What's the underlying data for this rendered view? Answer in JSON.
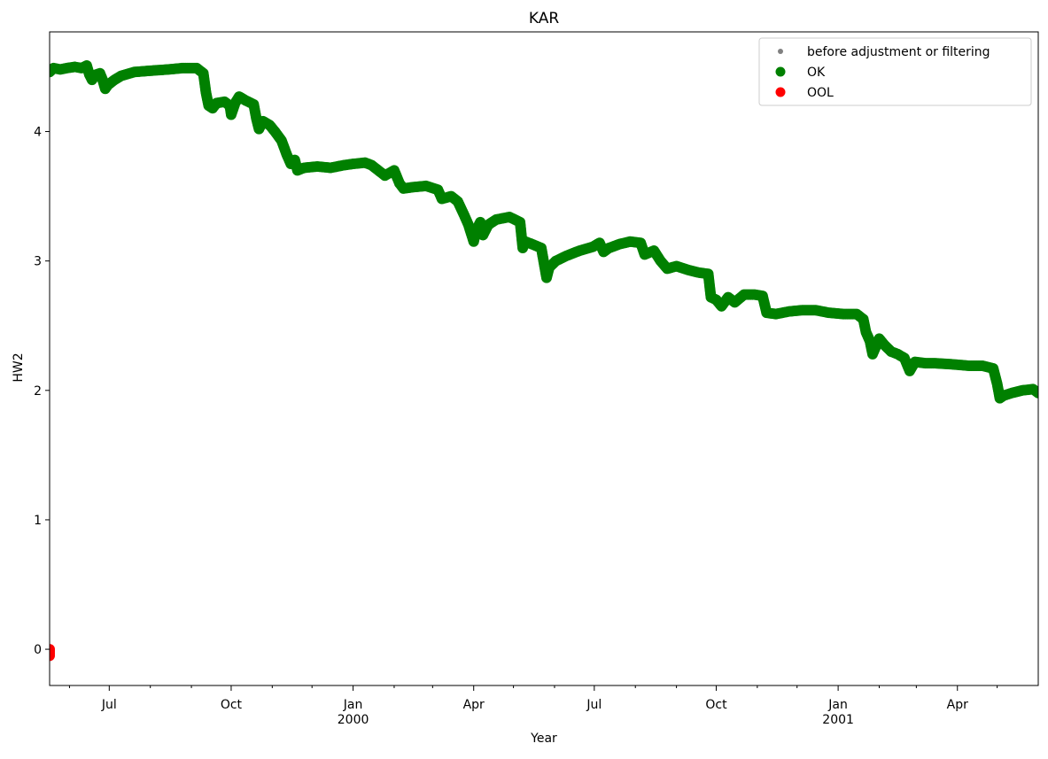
{
  "chart_data": {
    "type": "scatter",
    "title": "KAR",
    "xlabel": "Year",
    "ylabel": "HW2",
    "x_axis": {
      "type": "date",
      "range": [
        "1999-05-17",
        "2001-06-01"
      ],
      "major_ticks": [
        {
          "date": "1999-07-01",
          "label": "Jul",
          "sublabel": ""
        },
        {
          "date": "1999-10-01",
          "label": "Oct",
          "sublabel": ""
        },
        {
          "date": "2000-01-01",
          "label": "Jan",
          "sublabel": "2000"
        },
        {
          "date": "2000-04-01",
          "label": "Apr",
          "sublabel": ""
        },
        {
          "date": "2000-07-01",
          "label": "Jul",
          "sublabel": ""
        },
        {
          "date": "2000-10-01",
          "label": "Oct",
          "sublabel": ""
        },
        {
          "date": "2001-01-01",
          "label": "Jan",
          "sublabel": "2001"
        },
        {
          "date": "2001-04-01",
          "label": "Apr",
          "sublabel": ""
        }
      ],
      "minor_ticks": [
        "1999-06-01",
        "1999-08-01",
        "1999-09-01",
        "1999-11-01",
        "1999-12-01",
        "2000-02-01",
        "2000-03-01",
        "2000-05-01",
        "2000-06-01",
        "2000-08-01",
        "2000-09-01",
        "2000-11-01",
        "2000-12-01",
        "2001-02-01",
        "2001-03-01",
        "2001-05-01"
      ]
    },
    "y_axis": {
      "range": [
        -0.28,
        4.77
      ],
      "ticks": [
        0,
        1,
        2,
        3,
        4
      ],
      "tick_labels": [
        "0",
        "1",
        "2",
        "3",
        "4"
      ]
    },
    "grid": false,
    "legend": {
      "placement": "top-right",
      "entries": [
        {
          "label": "before adjustment or filtering",
          "color": "#808080",
          "marker": "small-dot"
        },
        {
          "label": "OK",
          "color": "#008000",
          "marker": "circle"
        },
        {
          "label": "OOL",
          "color": "#ff0000",
          "marker": "circle"
        }
      ]
    },
    "series": [
      {
        "name": "OK",
        "color": "#008000",
        "points": [
          [
            "1999-05-17",
            4.46
          ],
          [
            "1999-05-20",
            4.49
          ],
          [
            "1999-05-25",
            4.48
          ],
          [
            "1999-05-30",
            4.49
          ],
          [
            "1999-06-05",
            4.5
          ],
          [
            "1999-06-10",
            4.49
          ],
          [
            "1999-06-14",
            4.51
          ],
          [
            "1999-06-16",
            4.44
          ],
          [
            "1999-06-18",
            4.4
          ],
          [
            "1999-06-21",
            4.44
          ],
          [
            "1999-06-24",
            4.45
          ],
          [
            "1999-06-26",
            4.4
          ],
          [
            "1999-06-28",
            4.33
          ],
          [
            "1999-06-30",
            4.36
          ],
          [
            "1999-07-05",
            4.4
          ],
          [
            "1999-07-10",
            4.43
          ],
          [
            "1999-07-20",
            4.46
          ],
          [
            "1999-08-01",
            4.47
          ],
          [
            "1999-08-15",
            4.48
          ],
          [
            "1999-08-25",
            4.49
          ],
          [
            "1999-09-05",
            4.49
          ],
          [
            "1999-09-10",
            4.45
          ],
          [
            "1999-09-12",
            4.3
          ],
          [
            "1999-09-14",
            4.2
          ],
          [
            "1999-09-17",
            4.18
          ],
          [
            "1999-09-20",
            4.22
          ],
          [
            "1999-09-26",
            4.23
          ],
          [
            "1999-09-30",
            4.2
          ],
          [
            "1999-10-01",
            4.13
          ],
          [
            "1999-10-04",
            4.22
          ],
          [
            "1999-10-07",
            4.27
          ],
          [
            "1999-10-12",
            4.24
          ],
          [
            "1999-10-18",
            4.21
          ],
          [
            "1999-10-20",
            4.1
          ],
          [
            "1999-10-22",
            4.02
          ],
          [
            "1999-10-25",
            4.08
          ],
          [
            "1999-10-30",
            4.05
          ],
          [
            "1999-11-03",
            4.0
          ],
          [
            "1999-11-08",
            3.93
          ],
          [
            "1999-11-12",
            3.82
          ],
          [
            "1999-11-15",
            3.75
          ],
          [
            "1999-11-18",
            3.78
          ],
          [
            "1999-11-20",
            3.7
          ],
          [
            "1999-11-25",
            3.72
          ],
          [
            "1999-12-05",
            3.73
          ],
          [
            "1999-12-15",
            3.72
          ],
          [
            "1999-12-25",
            3.74
          ],
          [
            "2000-01-01",
            3.75
          ],
          [
            "2000-01-10",
            3.76
          ],
          [
            "2000-01-15",
            3.74
          ],
          [
            "2000-01-20",
            3.7
          ],
          [
            "2000-01-25",
            3.66
          ],
          [
            "2000-02-01",
            3.7
          ],
          [
            "2000-02-05",
            3.6
          ],
          [
            "2000-02-08",
            3.56
          ],
          [
            "2000-02-15",
            3.57
          ],
          [
            "2000-02-25",
            3.58
          ],
          [
            "2000-03-05",
            3.55
          ],
          [
            "2000-03-08",
            3.48
          ],
          [
            "2000-03-15",
            3.5
          ],
          [
            "2000-03-20",
            3.46
          ],
          [
            "2000-03-25",
            3.35
          ],
          [
            "2000-03-28",
            3.28
          ],
          [
            "2000-04-01",
            3.15
          ],
          [
            "2000-04-03",
            3.24
          ],
          [
            "2000-04-06",
            3.3
          ],
          [
            "2000-04-08",
            3.2
          ],
          [
            "2000-04-12",
            3.28
          ],
          [
            "2000-04-18",
            3.32
          ],
          [
            "2000-04-28",
            3.34
          ],
          [
            "2000-05-06",
            3.3
          ],
          [
            "2000-05-08",
            3.1
          ],
          [
            "2000-05-10",
            3.15
          ],
          [
            "2000-05-15",
            3.13
          ],
          [
            "2000-05-22",
            3.1
          ],
          [
            "2000-05-26",
            2.87
          ],
          [
            "2000-05-28",
            2.95
          ],
          [
            "2000-06-02",
            3.0
          ],
          [
            "2000-06-10",
            3.04
          ],
          [
            "2000-06-20",
            3.08
          ],
          [
            "2000-06-30",
            3.11
          ],
          [
            "2000-07-05",
            3.14
          ],
          [
            "2000-07-08",
            3.07
          ],
          [
            "2000-07-12",
            3.1
          ],
          [
            "2000-07-20",
            3.13
          ],
          [
            "2000-07-28",
            3.15
          ],
          [
            "2000-08-05",
            3.14
          ],
          [
            "2000-08-08",
            3.05
          ],
          [
            "2000-08-15",
            3.08
          ],
          [
            "2000-08-20",
            3.0
          ],
          [
            "2000-08-25",
            2.94
          ],
          [
            "2000-09-01",
            2.96
          ],
          [
            "2000-09-10",
            2.93
          ],
          [
            "2000-09-18",
            2.91
          ],
          [
            "2000-09-25",
            2.9
          ],
          [
            "2000-09-27",
            2.72
          ],
          [
            "2000-10-01",
            2.7
          ],
          [
            "2000-10-05",
            2.65
          ],
          [
            "2000-10-10",
            2.72
          ],
          [
            "2000-10-15",
            2.68
          ],
          [
            "2000-10-22",
            2.74
          ],
          [
            "2000-10-30",
            2.74
          ],
          [
            "2000-11-05",
            2.73
          ],
          [
            "2000-11-08",
            2.6
          ],
          [
            "2000-11-15",
            2.59
          ],
          [
            "2000-11-25",
            2.61
          ],
          [
            "2000-12-05",
            2.62
          ],
          [
            "2000-12-15",
            2.62
          ],
          [
            "2000-12-25",
            2.6
          ],
          [
            "2001-01-05",
            2.59
          ],
          [
            "2001-01-15",
            2.59
          ],
          [
            "2001-01-20",
            2.55
          ],
          [
            "2001-01-22",
            2.45
          ],
          [
            "2001-01-25",
            2.38
          ],
          [
            "2001-01-27",
            2.28
          ],
          [
            "2001-02-01",
            2.4
          ],
          [
            "2001-02-05",
            2.35
          ],
          [
            "2001-02-10",
            2.3
          ],
          [
            "2001-02-15",
            2.28
          ],
          [
            "2001-02-20",
            2.25
          ],
          [
            "2001-02-24",
            2.15
          ],
          [
            "2001-02-28",
            2.22
          ],
          [
            "2001-03-08",
            2.21
          ],
          [
            "2001-03-15",
            2.21
          ],
          [
            "2001-03-30",
            2.2
          ],
          [
            "2001-04-10",
            2.19
          ],
          [
            "2001-04-20",
            2.19
          ],
          [
            "2001-04-28",
            2.17
          ],
          [
            "2001-05-01",
            2.05
          ],
          [
            "2001-05-03",
            1.94
          ],
          [
            "2001-05-06",
            1.96
          ],
          [
            "2001-05-12",
            1.98
          ],
          [
            "2001-05-20",
            2.0
          ],
          [
            "2001-05-28",
            2.01
          ],
          [
            "2001-06-01",
            1.98
          ]
        ]
      },
      {
        "name": "OOL",
        "color": "#ff0000",
        "points": [
          [
            "1999-05-17",
            0.0
          ],
          [
            "1999-05-17",
            -0.05
          ]
        ]
      }
    ]
  }
}
